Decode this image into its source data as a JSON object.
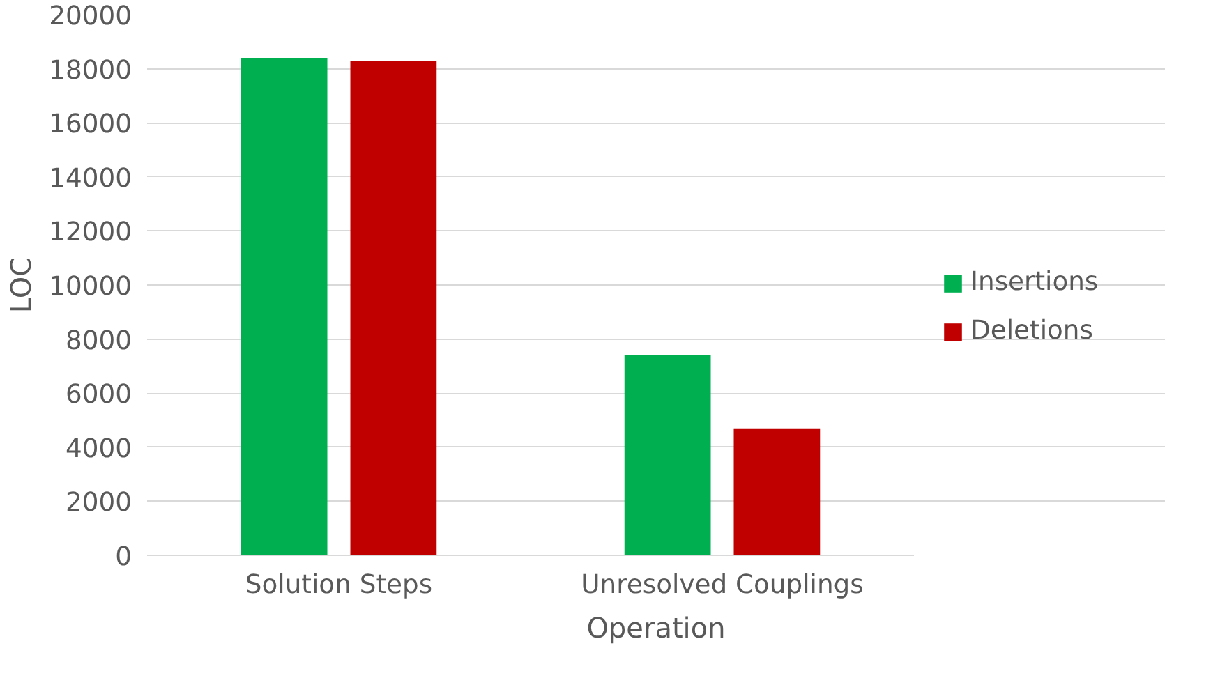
{
  "chart_data": {
    "type": "bar",
    "xlabel": "Operation",
    "ylabel": "LOC",
    "categories": [
      "Solution Steps",
      "Unresolved Couplings"
    ],
    "series": [
      {
        "name": "Insertions",
        "color": "#00b050",
        "values": [
          18400,
          7400
        ]
      },
      {
        "name": "Deletions",
        "color": "#c00000",
        "values": [
          18300,
          4700
        ]
      }
    ],
    "ylim": [
      0,
      20000
    ],
    "yticks": [
      0,
      2000,
      4000,
      6000,
      8000,
      10000,
      12000,
      14000,
      16000,
      18000,
      20000
    ],
    "grid": "y",
    "legend": "right"
  }
}
